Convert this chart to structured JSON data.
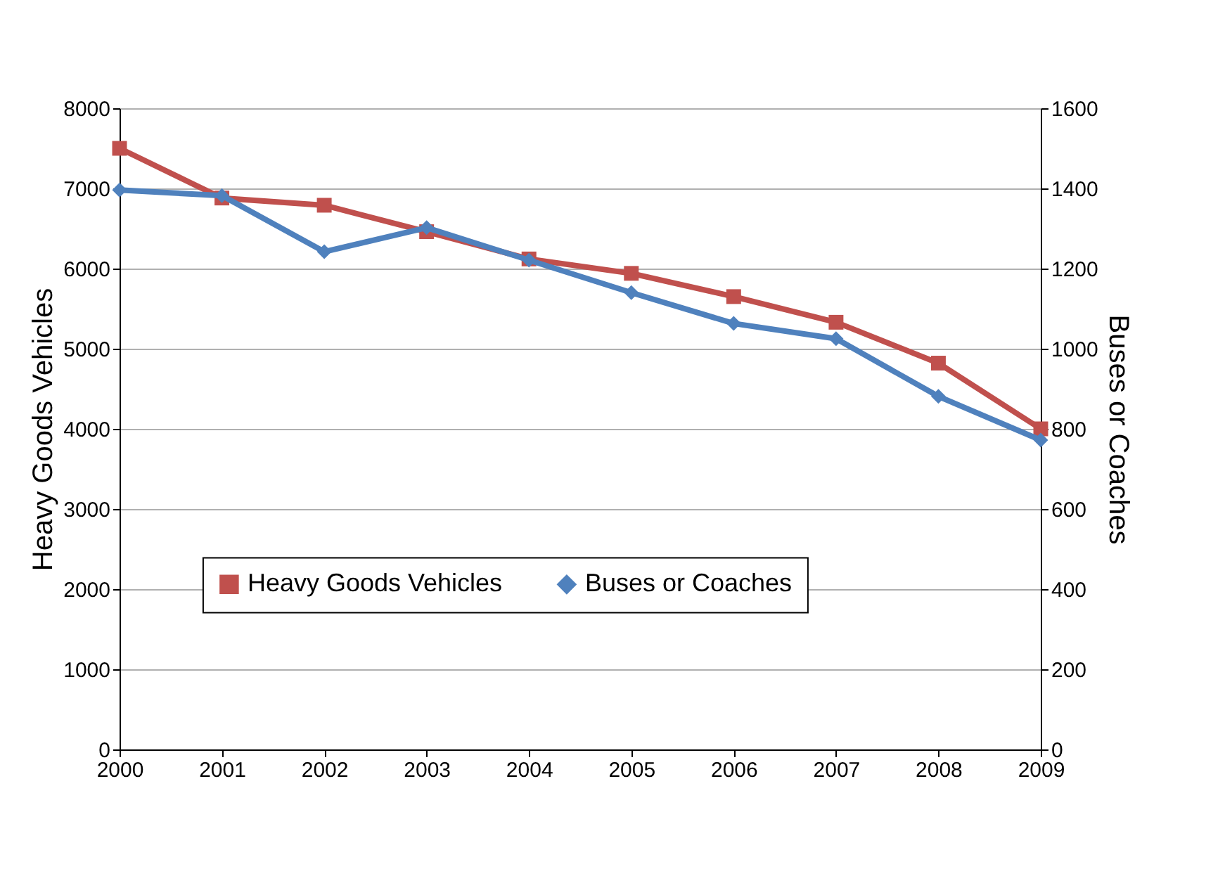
{
  "chart_data": {
    "type": "line",
    "categories": [
      "2000",
      "2001",
      "2002",
      "2003",
      "2004",
      "2005",
      "2006",
      "2007",
      "2008",
      "2009"
    ],
    "ylabel": "Heavy Goods Vehicles",
    "y2label": "Buses or Coaches",
    "ylim": [
      0,
      8000
    ],
    "yticks": [
      0,
      1000,
      2000,
      3000,
      4000,
      5000,
      6000,
      7000,
      8000
    ],
    "y2lim": [
      0,
      1600
    ],
    "y2ticks": [
      0,
      200,
      400,
      600,
      800,
      1000,
      1200,
      1400,
      1600
    ],
    "grid": "y",
    "legend": "bottom",
    "line_style": "solid",
    "series": [
      {
        "name": "Heavy Goods  Vehicles",
        "color": "#c0504d",
        "marker": "square",
        "values": [
          7500,
          6880,
          6790,
          6460,
          6120,
          5940,
          5650,
          5330,
          4820,
          4000
        ]
      },
      {
        "name": "Buses or Coaches",
        "color": "#4f81bd",
        "marker": "diamond",
        "axis": "y2",
        "values": [
          1396,
          1382,
          1242,
          1302,
          1221,
          1140,
          1063,
          1025,
          881,
          772
        ]
      }
    ]
  }
}
